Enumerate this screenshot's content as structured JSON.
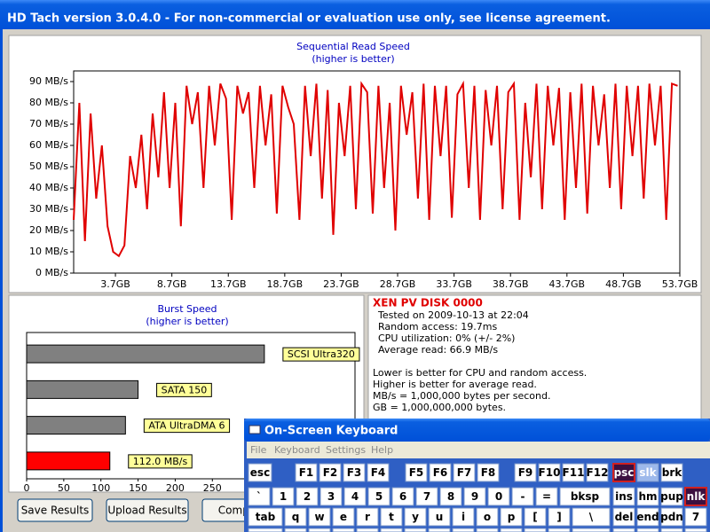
{
  "window": {
    "title": "HD Tach version 3.0.4.0  - For non-commercial or evaluation use only, see license agreement."
  },
  "chart_data": [
    {
      "type": "line",
      "title": "Sequential Read Speed",
      "subtitle": "(higher is better)",
      "x": [
        0,
        0.5,
        1,
        1.5,
        2,
        2.5,
        3,
        3.5,
        4,
        4.5,
        5,
        5.5,
        6,
        6.5,
        7,
        7.5,
        8,
        8.5,
        9,
        9.5,
        10,
        10.5,
        11,
        11.5,
        12,
        12.5,
        13,
        13.5,
        14,
        14.5,
        15,
        15.5,
        16,
        16.5,
        17,
        17.5,
        18,
        18.5,
        19,
        19.5,
        20,
        20.5,
        21,
        21.5,
        22,
        22.5,
        23,
        23.5,
        24,
        24.5,
        25,
        25.5,
        26,
        26.5,
        27,
        27.5,
        28,
        28.5,
        29,
        29.5,
        30,
        30.5,
        31,
        31.5,
        32,
        32.5,
        33,
        33.5,
        34,
        34.5,
        35,
        35.5,
        36,
        36.5,
        37,
        37.5,
        38,
        38.5,
        39,
        39.5,
        40,
        40.5,
        41,
        41.5,
        42,
        42.5,
        43,
        43.5,
        44,
        44.5,
        45,
        45.5,
        46,
        46.5,
        47,
        47.5,
        48,
        48.5,
        49,
        49.5,
        50,
        50.5,
        51,
        51.5,
        52,
        52.5,
        53,
        53.5
      ],
      "series": [
        {
          "color": "#e00000",
          "values": [
            25,
            80,
            15,
            75,
            35,
            60,
            22,
            10,
            8,
            13,
            55,
            40,
            65,
            30,
            75,
            45,
            85,
            40,
            80,
            22,
            88,
            70,
            85,
            40,
            88,
            60,
            89,
            82,
            25,
            88,
            75,
            85,
            40,
            88,
            60,
            84,
            28,
            88,
            78,
            70,
            25,
            88,
            55,
            89,
            35,
            86,
            18,
            80,
            55,
            88,
            30,
            89,
            85,
            28,
            88,
            40,
            80,
            20,
            88,
            65,
            85,
            35,
            89,
            25,
            88,
            55,
            88,
            26,
            84,
            89,
            40,
            88,
            25,
            86,
            60,
            88,
            30,
            85,
            89,
            25,
            80,
            45,
            89,
            30,
            88,
            60,
            87,
            25,
            85,
            40,
            89,
            28,
            88,
            60,
            84,
            40,
            89,
            30,
            88,
            55,
            88,
            35,
            89,
            60,
            88,
            25,
            89,
            88
          ]
        }
      ],
      "xlim": [
        0,
        53.7
      ],
      "xticks": [
        {
          "value": 3.7,
          "label": "3.7GB"
        },
        {
          "value": 8.7,
          "label": "8.7GB"
        },
        {
          "value": 13.7,
          "label": "13.7GB"
        },
        {
          "value": 18.7,
          "label": "18.7GB"
        },
        {
          "value": 23.7,
          "label": "23.7GB"
        },
        {
          "value": 28.7,
          "label": "28.7GB"
        },
        {
          "value": 33.7,
          "label": "33.7GB"
        },
        {
          "value": 38.7,
          "label": "38.7GB"
        },
        {
          "value": 43.7,
          "label": "43.7GB"
        },
        {
          "value": 48.7,
          "label": "48.7GB"
        },
        {
          "value": 53.7,
          "label": "53.7GB"
        }
      ],
      "ylim": [
        0,
        95
      ],
      "yticks": [
        {
          "value": 0,
          "label": "0 MB/s"
        },
        {
          "value": 10,
          "label": "10 MB/s"
        },
        {
          "value": 20,
          "label": "20 MB/s"
        },
        {
          "value": 30,
          "label": "30 MB/s"
        },
        {
          "value": 40,
          "label": "40 MB/s"
        },
        {
          "value": 50,
          "label": "50 MB/s"
        },
        {
          "value": 60,
          "label": "60 MB/s"
        },
        {
          "value": 70,
          "label": "70 MB/s"
        },
        {
          "value": 80,
          "label": "80 MB/s"
        },
        {
          "value": 90,
          "label": "90 MB/s"
        }
      ]
    },
    {
      "type": "bar",
      "title": "Burst Speed",
      "subtitle": "(higher is better)",
      "categories": [
        "SCSI Ultra320",
        "SATA 150",
        "ATA UltraDMA 6",
        null
      ],
      "values": [
        320,
        150,
        133,
        112
      ],
      "value_labels": [
        null,
        null,
        null,
        "112.0 MB/s"
      ],
      "colors": [
        "#808080",
        "#808080",
        "#808080",
        "#ff0000"
      ],
      "xlim": [
        0,
        442
      ],
      "xticks": [
        0,
        50,
        100,
        150,
        200,
        250
      ]
    }
  ],
  "info": {
    "heading": "XEN PV DISK 0000",
    "results": [
      "Tested on 2009-10-13 at 22:04",
      "Random access: 19.7ms",
      "CPU utilization: 0% (+/- 2%)",
      "Average read: 66.9 MB/s"
    ],
    "notes": [
      "Lower is better for CPU and random access.",
      "Higher is better for average read.",
      "MB/s = 1,000,000 bytes per second.",
      "GB = 1,000,000,000 bytes."
    ]
  },
  "buttons": [
    "Save Results",
    "Upload Results",
    "Compare"
  ],
  "keyboard": {
    "title": "On-Screen Keyboard",
    "menu": [
      "File",
      "Keyboard",
      "Settings",
      "Help"
    ],
    "rows": [
      [
        "esc",
        "F1",
        "F2",
        "F3",
        "F4",
        "F5",
        "F6",
        "F7",
        "F8",
        "F9",
        "F10",
        "F11",
        "F12",
        "psc",
        "slk",
        "brk"
      ],
      [
        "`",
        "1",
        "2",
        "3",
        "4",
        "5",
        "6",
        "7",
        "8",
        "9",
        "0",
        "-",
        "=",
        "bksp",
        "ins",
        "hm",
        "pup",
        "nlk"
      ],
      [
        "tab",
        "q",
        "w",
        "e",
        "r",
        "t",
        "y",
        "u",
        "i",
        "o",
        "p",
        "[",
        "]",
        "\\",
        "del",
        "end",
        "pdn",
        "7"
      ]
    ]
  }
}
